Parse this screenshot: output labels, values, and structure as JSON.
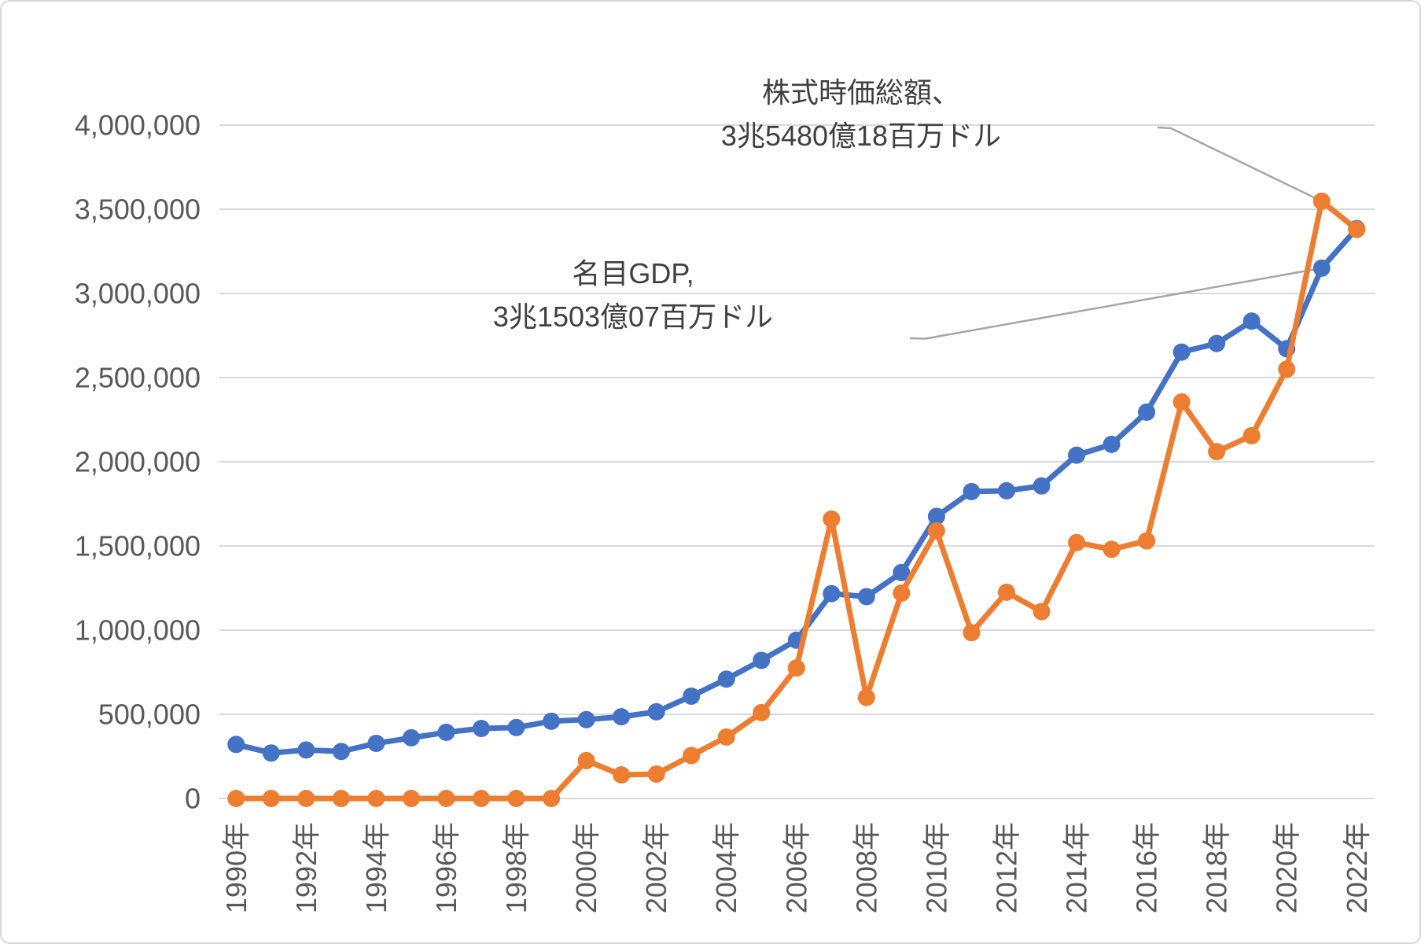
{
  "colors": {
    "gdp_series": "#4472C4",
    "marketcap_series": "#ED7D31",
    "gridline": "#D9D9D9",
    "axis_text": "#595959",
    "annotation_text": "#404040",
    "leader_line": "#A6A6A6",
    "background": "#FFFFFF"
  },
  "chart_data": {
    "type": "line",
    "title": "",
    "grid": true,
    "legend": "none",
    "ylim": [
      0,
      4000000
    ],
    "years": [
      1990,
      1991,
      1992,
      1993,
      1994,
      1995,
      1996,
      1997,
      1998,
      1999,
      2000,
      2001,
      2002,
      2003,
      2004,
      2005,
      2006,
      2007,
      2008,
      2009,
      2010,
      2011,
      2012,
      2013,
      2014,
      2015,
      2016,
      2017,
      2018,
      2019,
      2020,
      2021,
      2022
    ],
    "x_tick_labels": [
      "1990年",
      "1992年",
      "1994年",
      "1996年",
      "1998年",
      "2000年",
      "2002年",
      "2004年",
      "2006年",
      "2008年",
      "2010年",
      "2012年",
      "2014年",
      "2016年",
      "2018年",
      "2020年",
      "2022年"
    ],
    "y_ticks": [
      0,
      500000,
      1000000,
      1500000,
      2000000,
      2500000,
      3000000,
      3500000,
      4000000
    ],
    "y_tick_labels": [
      "0",
      "500,000",
      "1,000,000",
      "1,500,000",
      "2,000,000",
      "2,500,000",
      "3,000,000",
      "3,500,000",
      "4,000,000"
    ],
    "series": [
      {
        "name": "名目GDP",
        "color": "#4472C4",
        "values": [
          320979,
          270105,
          288208,
          279296,
          327275,
          360282,
          392897,
          415868,
          421351,
          458820,
          468395,
          485441,
          514938,
          607699,
          709149,
          820382,
          940260,
          1216736,
          1198895,
          1341887,
          1675615,
          1823050,
          1827638,
          1856722,
          2039127,
          2103588,
          2294798,
          2651473,
          2702930,
          2835606,
          2671595,
          3150307,
          3385090
        ]
      },
      {
        "name": "株式時価総額",
        "color": "#ED7D31",
        "values": [
          0,
          0,
          0,
          0,
          0,
          0,
          0,
          0,
          0,
          0,
          225000,
          140000,
          145000,
          255000,
          365000,
          510000,
          775000,
          1660000,
          600000,
          1220000,
          1590000,
          985000,
          1225000,
          1110000,
          1520000,
          1480000,
          1530000,
          2355000,
          2060000,
          2155000,
          2550000,
          3548018,
          3380000
        ]
      }
    ],
    "annotations": [
      {
        "target_series": "株式時価総額",
        "target_year": 2021,
        "lines": [
          "株式時価総額、",
          "3兆5480億18百万ドル"
        ]
      },
      {
        "target_series": "名目GDP",
        "target_year": 2021,
        "lines": [
          "名目GDP,",
          "3兆1503億07百万ドル"
        ]
      }
    ]
  }
}
